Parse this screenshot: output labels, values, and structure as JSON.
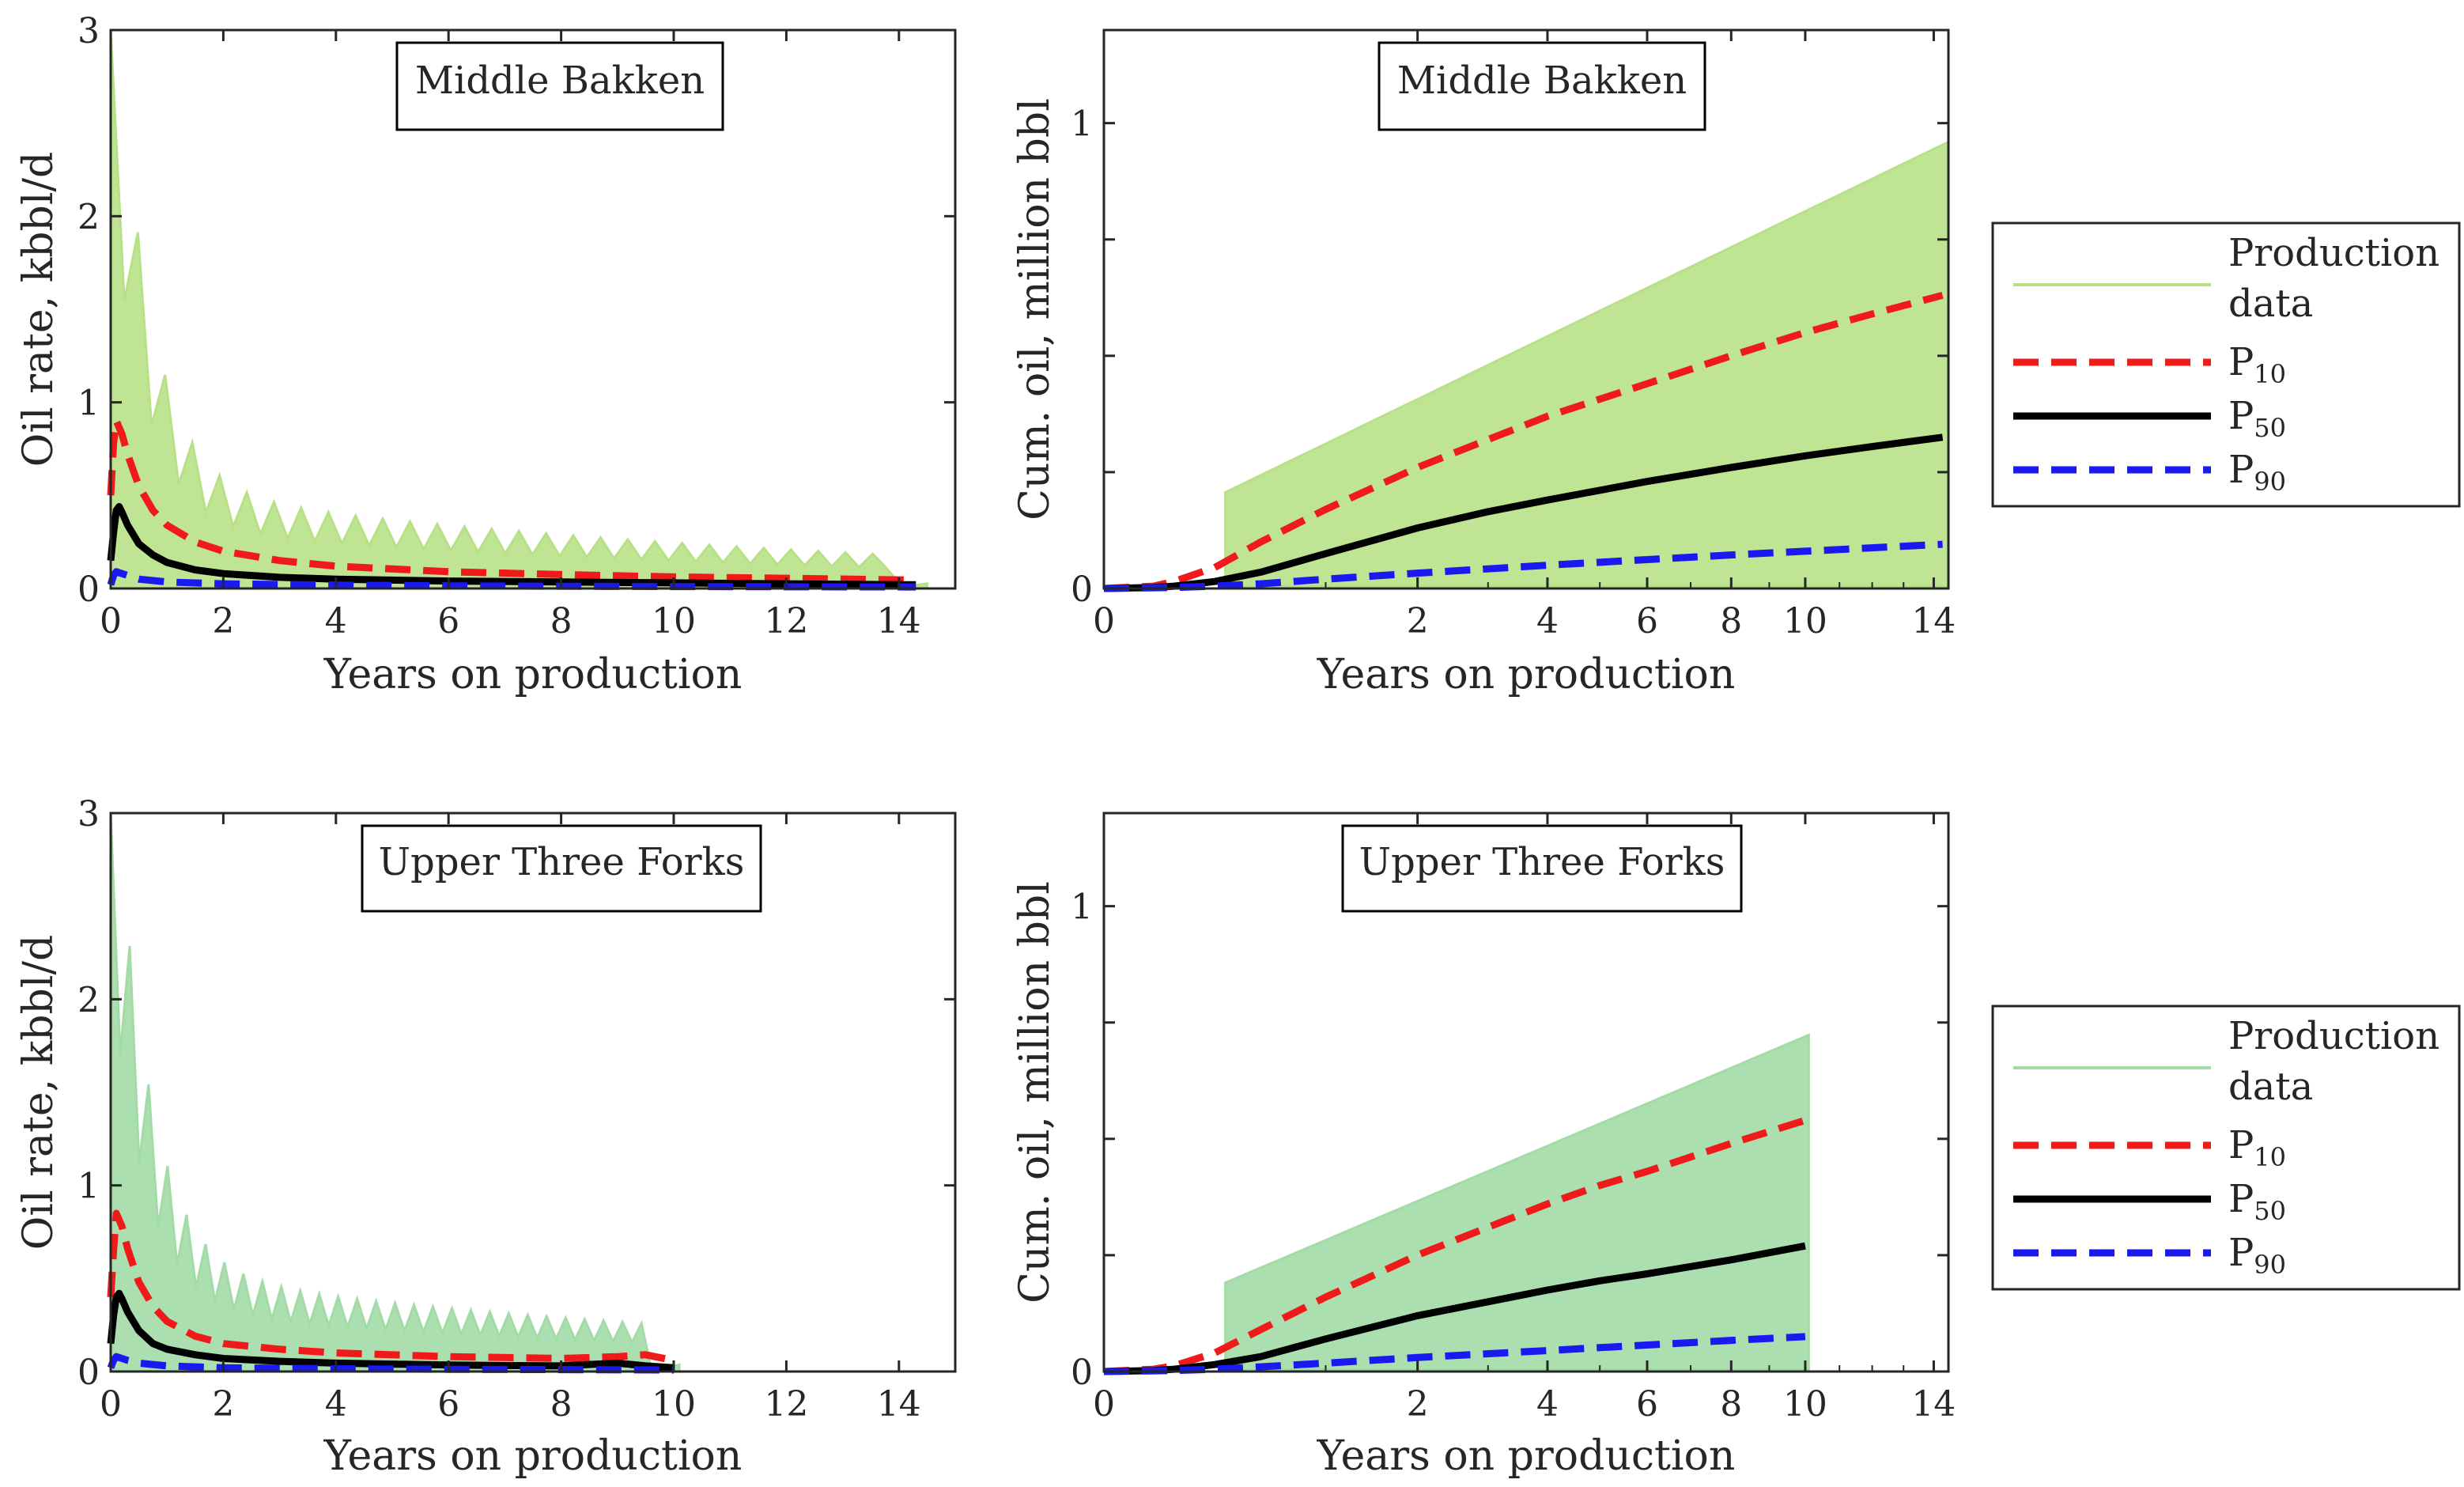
{
  "figure": {
    "colors": {
      "bakken_data": "#b8e187",
      "threeforks_data": "#a3dba6",
      "p10": "#f01a1a",
      "p50": "#000000",
      "p90": "#1a1af0",
      "axes": "#262626"
    }
  },
  "legend": {
    "production": "Production",
    "data": "data",
    "p": "P",
    "p10_sub": "10",
    "p50_sub": "50",
    "p90_sub": "90"
  },
  "chart_data": [
    {
      "id": "rate_bakken",
      "type": "line",
      "title": "Middle Bakken",
      "xlabel": "Years on production",
      "ylabel": "Oil rate, kbbl/d",
      "xlim": [
        0,
        15
      ],
      "ylim": [
        0,
        3
      ],
      "x_scale": "linear",
      "xticks": [
        0,
        2,
        4,
        6,
        8,
        10,
        12,
        14
      ],
      "yticks": [
        0,
        1,
        2,
        3
      ],
      "data_extent": 14.5,
      "grid": false,
      "series": [
        {
          "key": "p10",
          "x": [
            0,
            0.05,
            0.1,
            0.2,
            0.3,
            0.5,
            0.75,
            1,
            1.5,
            2,
            3,
            4,
            6,
            8,
            10,
            12,
            14.3
          ],
          "y": [
            0.5,
            0.78,
            0.9,
            0.83,
            0.72,
            0.55,
            0.42,
            0.34,
            0.25,
            0.2,
            0.15,
            0.12,
            0.09,
            0.075,
            0.062,
            0.055,
            0.045
          ]
        },
        {
          "key": "p50",
          "x": [
            0,
            0.05,
            0.1,
            0.15,
            0.2,
            0.3,
            0.5,
            0.75,
            1,
            1.5,
            2,
            3,
            4,
            6,
            8,
            10,
            12,
            14.3
          ],
          "y": [
            0.15,
            0.3,
            0.42,
            0.44,
            0.41,
            0.34,
            0.24,
            0.18,
            0.14,
            0.1,
            0.08,
            0.06,
            0.05,
            0.04,
            0.035,
            0.03,
            0.025,
            0.02
          ]
        },
        {
          "key": "p90",
          "x": [
            0,
            0.05,
            0.1,
            0.2,
            0.3,
            0.5,
            1,
            2,
            4,
            6,
            10,
            14.3
          ],
          "y": [
            0.02,
            0.07,
            0.09,
            0.08,
            0.07,
            0.05,
            0.035,
            0.025,
            0.018,
            0.014,
            0.01,
            0.008
          ]
        }
      ]
    },
    {
      "id": "cum_bakken",
      "type": "line",
      "title": "Middle Bakken",
      "xlabel": "Years on production",
      "ylabel": "Cum. oil, million bbl",
      "xlim": [
        0,
        14.5
      ],
      "ylim": [
        0,
        1.2
      ],
      "x_scale": "sqrt",
      "xticks": [
        0,
        2,
        4,
        6,
        8,
        10,
        14
      ],
      "xticks_minor": [
        1,
        3,
        5,
        7,
        9,
        11,
        12,
        13
      ],
      "yticks": [
        0,
        1
      ],
      "yticks_minor": [
        0.25,
        0.5,
        0.75
      ],
      "data_extent": 14.5,
      "grid": false,
      "series": [
        {
          "key": "p10",
          "x": [
            0,
            0.05,
            0.1,
            0.25,
            0.5,
            1,
            2,
            3,
            4,
            6,
            8,
            10,
            12,
            14.3
          ],
          "y": [
            0,
            0.005,
            0.015,
            0.045,
            0.1,
            0.17,
            0.26,
            0.32,
            0.37,
            0.44,
            0.5,
            0.55,
            0.59,
            0.63
          ]
        },
        {
          "key": "p50",
          "x": [
            0,
            0.05,
            0.1,
            0.25,
            0.5,
            1,
            2,
            3,
            4,
            6,
            8,
            10,
            12,
            14.3
          ],
          "y": [
            0,
            0.002,
            0.005,
            0.015,
            0.035,
            0.075,
            0.13,
            0.165,
            0.19,
            0.23,
            0.26,
            0.285,
            0.305,
            0.325
          ]
        },
        {
          "key": "p90",
          "x": [
            0,
            0.1,
            0.25,
            0.5,
            1,
            2,
            4,
            6,
            8,
            10,
            14.3
          ],
          "y": [
            0,
            0.002,
            0.005,
            0.01,
            0.02,
            0.033,
            0.05,
            0.062,
            0.072,
            0.08,
            0.095
          ]
        }
      ]
    },
    {
      "id": "rate_threeforks",
      "type": "line",
      "title": "Upper Three Forks",
      "xlabel": "Years on production",
      "ylabel": "Oil rate, kbbl/d",
      "xlim": [
        0,
        15
      ],
      "ylim": [
        0,
        3
      ],
      "x_scale": "linear",
      "xticks": [
        0,
        2,
        4,
        6,
        8,
        10,
        12,
        14
      ],
      "yticks": [
        0,
        1,
        2,
        3
      ],
      "data_extent": 10.1,
      "grid": false,
      "series": [
        {
          "key": "p10",
          "x": [
            0,
            0.05,
            0.1,
            0.2,
            0.3,
            0.5,
            0.75,
            1,
            1.5,
            2,
            3,
            4,
            6,
            8,
            9,
            9.5,
            10
          ],
          "y": [
            0.4,
            0.65,
            0.85,
            0.78,
            0.66,
            0.48,
            0.35,
            0.27,
            0.19,
            0.15,
            0.12,
            0.1,
            0.08,
            0.07,
            0.08,
            0.09,
            0.06
          ]
        },
        {
          "key": "p50",
          "x": [
            0,
            0.05,
            0.1,
            0.15,
            0.2,
            0.3,
            0.5,
            0.75,
            1,
            1.5,
            2,
            3,
            4,
            6,
            8,
            9,
            9.5,
            10
          ],
          "y": [
            0.15,
            0.3,
            0.4,
            0.42,
            0.39,
            0.32,
            0.22,
            0.15,
            0.12,
            0.09,
            0.07,
            0.055,
            0.045,
            0.035,
            0.03,
            0.045,
            0.03,
            0.02
          ]
        },
        {
          "key": "p90",
          "x": [
            0,
            0.05,
            0.1,
            0.2,
            0.3,
            0.5,
            1,
            2,
            4,
            6,
            8,
            10
          ],
          "y": [
            0.02,
            0.06,
            0.08,
            0.07,
            0.06,
            0.045,
            0.03,
            0.02,
            0.015,
            0.012,
            0.01,
            0.008
          ]
        }
      ]
    },
    {
      "id": "cum_threeforks",
      "type": "line",
      "title": "Upper Three Forks",
      "xlabel": "Years on production",
      "ylabel": "Cum. oil, million bbl",
      "xlim": [
        0,
        14.5
      ],
      "ylim": [
        0,
        1.2
      ],
      "x_scale": "sqrt",
      "xticks": [
        0,
        2,
        4,
        6,
        8,
        10,
        14
      ],
      "xticks_minor": [
        1,
        3,
        5,
        7,
        9,
        11,
        12,
        13
      ],
      "yticks": [
        0,
        1
      ],
      "yticks_minor": [
        0.25,
        0.5,
        0.75
      ],
      "data_extent": 10.1,
      "grid": false,
      "series": [
        {
          "key": "p10",
          "x": [
            0,
            0.05,
            0.1,
            0.25,
            0.5,
            1,
            2,
            3,
            4,
            5,
            6,
            8,
            10
          ],
          "y": [
            0,
            0.005,
            0.012,
            0.04,
            0.09,
            0.16,
            0.25,
            0.31,
            0.36,
            0.4,
            0.43,
            0.49,
            0.54
          ]
        },
        {
          "key": "p50",
          "x": [
            0,
            0.05,
            0.1,
            0.25,
            0.5,
            1,
            2,
            3,
            4,
            5,
            6,
            8,
            10
          ],
          "y": [
            0,
            0.002,
            0.005,
            0.015,
            0.032,
            0.07,
            0.12,
            0.15,
            0.175,
            0.195,
            0.21,
            0.24,
            0.27
          ]
        },
        {
          "key": "p90",
          "x": [
            0,
            0.1,
            0.25,
            0.5,
            1,
            2,
            4,
            6,
            8,
            10
          ],
          "y": [
            0,
            0.002,
            0.005,
            0.01,
            0.018,
            0.03,
            0.045,
            0.057,
            0.067,
            0.075
          ]
        }
      ]
    }
  ]
}
